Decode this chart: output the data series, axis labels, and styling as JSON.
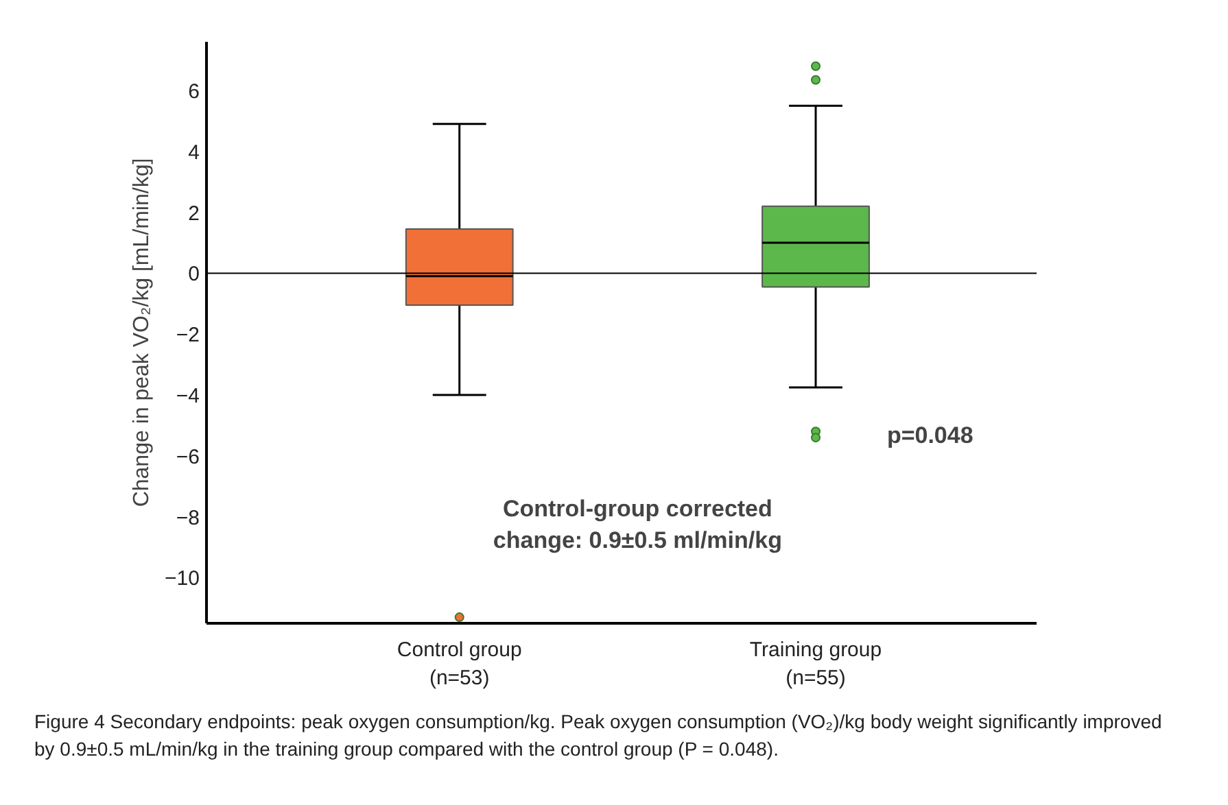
{
  "chart_data": {
    "type": "box",
    "ylabel": "Change in peak VO₂/kg [mL/min/kg]",
    "categories": [
      "Control group\n(n=53)",
      "Training group\n(n=55)"
    ],
    "colors": [
      "#f07037",
      "#5cb84a"
    ],
    "boxes": [
      {
        "low": -4.0,
        "q1": -1.05,
        "median": -0.1,
        "q3": 1.45,
        "high": 4.9,
        "outliers": [
          -11.3
        ]
      },
      {
        "low": -3.75,
        "q1": -0.45,
        "median": 1.0,
        "q3": 2.2,
        "high": 5.5,
        "outliers": [
          6.8,
          6.35,
          -5.2,
          -5.4
        ]
      }
    ],
    "ylim": [
      -11.5,
      7.6
    ],
    "yticks": [
      -10,
      -8,
      -6,
      -4,
      -2,
      0,
      2,
      4,
      6
    ],
    "ref_lines": [
      {
        "axis": "y",
        "value": 0
      }
    ],
    "grid": false,
    "annotations": [
      "p=0.048",
      "Control-group corrected\nchange: 0.9±0.5 ml/min/kg",
      "Figure 4 Secondary endpoints: peak oxygen consumption/kg. Peak oxygen consumption (VO₂)/kg body weight significantly improved by 0.9±0.5 mL/min/kg in the training group compared with the control group (P = 0.048)."
    ]
  }
}
